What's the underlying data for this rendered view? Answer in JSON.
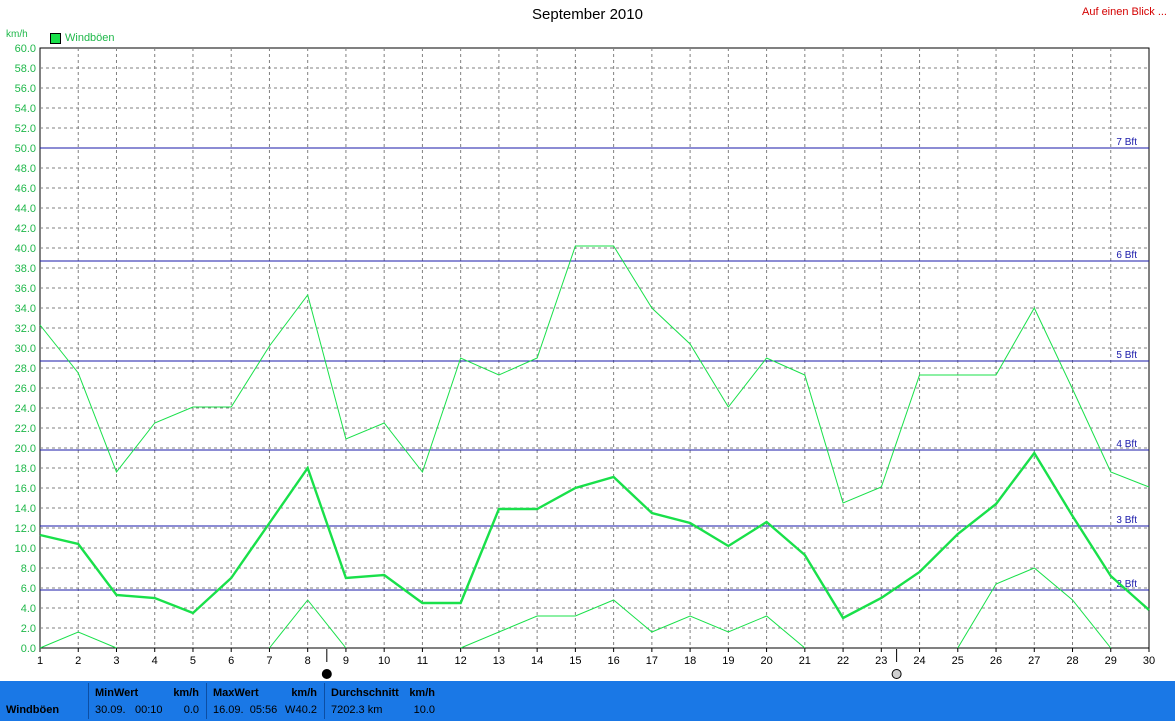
{
  "title": "September 2010",
  "link_label": "Auf einen Blick ...",
  "unit": "km/h",
  "legend_label": "Windböen",
  "colors": {
    "series": "#19e04a",
    "beaufort_line": "#1a1aaa",
    "grid": "#808080",
    "axis_text": "#1fb84a",
    "footer": "#1a78e6"
  },
  "chart_data": {
    "type": "line",
    "title": "September 2010",
    "ylabel": "km/h",
    "ylim": [
      0,
      60
    ],
    "ytick_step": 2,
    "x": [
      1,
      2,
      3,
      4,
      5,
      6,
      7,
      8,
      9,
      10,
      11,
      12,
      13,
      14,
      15,
      16,
      17,
      18,
      19,
      20,
      21,
      22,
      23,
      24,
      25,
      26,
      27,
      28,
      29,
      30
    ],
    "xlim": [
      1,
      30
    ],
    "grid": true,
    "legend_placement": "top-left",
    "series": [
      {
        "name": "Windböen",
        "role": "mean",
        "values": [
          11.3,
          10.4,
          5.3,
          5.0,
          3.5,
          7.0,
          12.5,
          18.0,
          7.0,
          7.3,
          4.5,
          4.5,
          13.9,
          13.9,
          16.0,
          17.1,
          13.5,
          12.5,
          10.2,
          12.6,
          9.3,
          3.0,
          5.0,
          7.6,
          11.4,
          14.4,
          19.5,
          13.2,
          7.2,
          3.8
        ]
      },
      {
        "role": "max",
        "values": [
          32.3,
          27.5,
          17.6,
          22.5,
          24.1,
          24.1,
          30.2,
          35.3,
          20.9,
          22.5,
          17.6,
          29.0,
          27.3,
          29.0,
          40.2,
          40.2,
          34.0,
          30.4,
          24.1,
          29.0,
          27.3,
          14.5,
          16.1,
          27.3,
          27.3,
          27.3,
          34.0,
          25.9,
          17.6,
          16.1
        ]
      },
      {
        "role": "min",
        "values": [
          0,
          1.6,
          0,
          null,
          null,
          null,
          0,
          4.8,
          0,
          null,
          null,
          0,
          1.6,
          3.2,
          3.2,
          4.8,
          1.6,
          3.2,
          1.6,
          3.2,
          0,
          null,
          null,
          null,
          0,
          6.4,
          8.0,
          4.8,
          0,
          null
        ]
      }
    ],
    "reference_lines": [
      {
        "label": "2 Bft",
        "y": 5.8
      },
      {
        "label": "3 Bft",
        "y": 12.2
      },
      {
        "label": "4 Bft",
        "y": 19.8
      },
      {
        "label": "5 Bft",
        "y": 28.7
      },
      {
        "label": "6 Bft",
        "y": 38.7
      },
      {
        "label": "7 Bft",
        "y": 50.0
      }
    ],
    "moon_phases": [
      {
        "x": 8.5,
        "phase": "new"
      },
      {
        "x": 23.4,
        "phase": "full"
      }
    ]
  },
  "footer": {
    "series_name": "Windböen",
    "min": {
      "header": "MinWert",
      "unit": "km/h",
      "date": "30.09.",
      "time": "00:10",
      "value": "0.0"
    },
    "max": {
      "header": "MaxWert",
      "unit": "km/h",
      "datetime": "16.09.  05:56",
      "dir": "W",
      "value": "40.2"
    },
    "avg": {
      "header": "Durchschnitt",
      "unit": "km/h",
      "distance": "7202.3 km",
      "value": "10.0"
    }
  }
}
